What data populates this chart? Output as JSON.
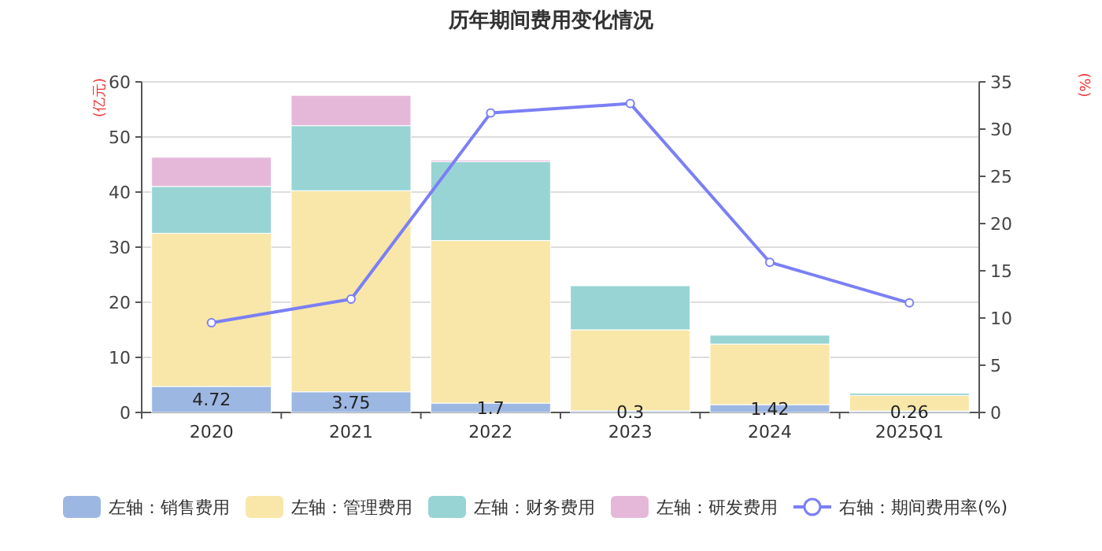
{
  "chart_data": {
    "type": "bar",
    "title": "历年期间费用变化情况",
    "ylabel": "(亿元)",
    "y2label": "(%)",
    "stacked": true,
    "grid": "y",
    "legend": "bottom",
    "categories": [
      "2020",
      "2021",
      "2022",
      "2023",
      "2024",
      "2025Q1"
    ],
    "ylim": [
      0,
      60
    ],
    "yticks": [
      0,
      10,
      20,
      30,
      40,
      50,
      60
    ],
    "y2lim": [
      0,
      35
    ],
    "y2ticks": [
      0,
      5,
      10,
      15,
      20,
      25,
      30,
      35
    ],
    "series": [
      {
        "name": "左轴：销售费用",
        "color": "#9db7e3",
        "values": [
          4.72,
          3.75,
          1.7,
          0.3,
          1.42,
          0.26
        ],
        "value_labels": [
          "4.72",
          "3.75",
          "1.7",
          "0.3",
          "1.42",
          "0.26"
        ]
      },
      {
        "name": "左轴：管理费用",
        "color": "#f8e7a9",
        "values": [
          27.8,
          36.5,
          29.5,
          14.7,
          11.0,
          2.84
        ]
      },
      {
        "name": "左轴：财务费用",
        "color": "#98d4d4",
        "values": [
          8.5,
          11.8,
          14.3,
          8.0,
          1.6,
          0.4
        ]
      },
      {
        "name": "左轴：研发费用",
        "color": "#e5b8d9",
        "values": [
          5.3,
          5.5,
          0.3,
          0,
          0,
          0
        ]
      },
      {
        "name": "右轴：期间费用率(%)",
        "type": "line",
        "axis": "y2",
        "marker": "circle",
        "color": "#7b7ff5",
        "values": [
          9.5,
          12.0,
          31.7,
          32.7,
          15.9,
          11.6
        ]
      }
    ]
  }
}
